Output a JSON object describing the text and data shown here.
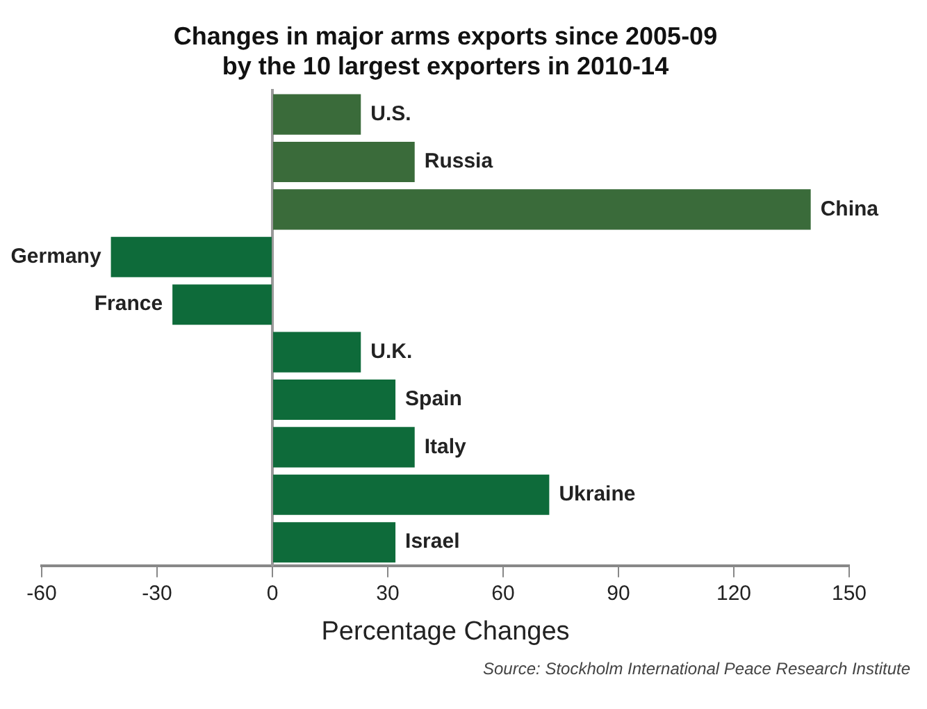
{
  "chart_data": {
    "type": "bar",
    "orientation": "horizontal",
    "title": "Changes in major arms exports since 2005-09\nby the 10 largest exporters in 2010-14",
    "xlabel": "Percentage Changes",
    "categories": [
      "U.S.",
      "Russia",
      "China",
      "Germany",
      "France",
      "U.K.",
      "Spain",
      "Italy",
      "Ukraine",
      "Israel"
    ],
    "values": [
      23,
      37,
      140,
      -42,
      -26,
      23,
      32,
      37,
      72,
      32
    ],
    "colors": [
      "#3a6b3a",
      "#3a6b3a",
      "#3a6b3a",
      "#0e6b3a",
      "#0e6b3a",
      "#0e6b3a",
      "#0e6b3a",
      "#0e6b3a",
      "#0e6b3a",
      "#0e6b3a"
    ],
    "xlim": [
      -60,
      150
    ],
    "xticks": [
      -60,
      -30,
      0,
      30,
      60,
      90,
      120,
      150
    ],
    "tick_labels": "x",
    "legend": false,
    "annotations": [
      "Source: Stockholm International Peace Research Institute"
    ]
  }
}
